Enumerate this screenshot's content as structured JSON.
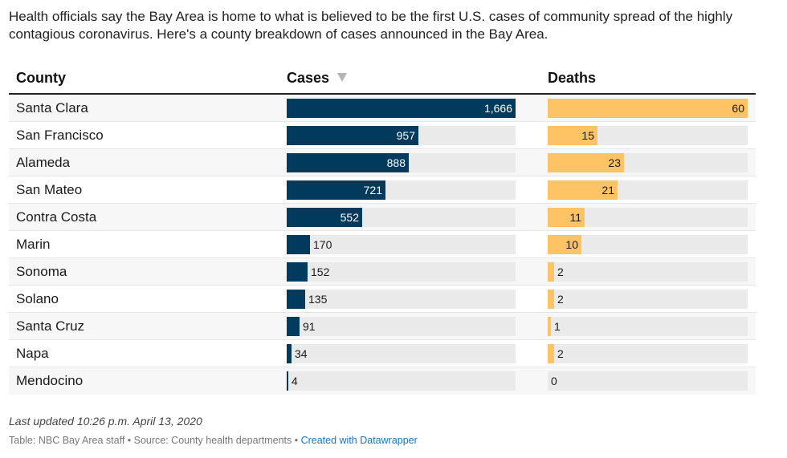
{
  "intro": "Health officials say the Bay Area is home to what is believed to be the first U.S. cases of community spread of the highly contagious coronavirus. Here's a county breakdown of cases announced in the Bay Area.",
  "headers": {
    "county": "County",
    "cases": "Cases",
    "deaths": "Deaths"
  },
  "sort_icon": "sort-descending-triangle-icon",
  "colors": {
    "cases": "#003a5c",
    "deaths": "#fdc364",
    "track": "#eaeaea"
  },
  "chart_data": {
    "type": "table",
    "title": "",
    "columns": [
      "County",
      "Cases",
      "Deaths"
    ],
    "sorted_by": "Cases",
    "sort_order": "descending",
    "cases_max": 1666,
    "deaths_max": 60,
    "rows": [
      {
        "county": "Santa Clara",
        "cases": "1,666",
        "cases_value": 1666,
        "deaths": "60",
        "deaths_value": 60
      },
      {
        "county": "San Francisco",
        "cases": "957",
        "cases_value": 957,
        "deaths": "15",
        "deaths_value": 15
      },
      {
        "county": "Alameda",
        "cases": "888",
        "cases_value": 888,
        "deaths": "23",
        "deaths_value": 23
      },
      {
        "county": "San Mateo",
        "cases": "721",
        "cases_value": 721,
        "deaths": "21",
        "deaths_value": 21
      },
      {
        "county": "Contra Costa",
        "cases": "552",
        "cases_value": 552,
        "deaths": "11",
        "deaths_value": 11
      },
      {
        "county": "Marin",
        "cases": "170",
        "cases_value": 170,
        "deaths": "10",
        "deaths_value": 10
      },
      {
        "county": "Sonoma",
        "cases": "152",
        "cases_value": 152,
        "deaths": "2",
        "deaths_value": 2
      },
      {
        "county": "Solano",
        "cases": "135",
        "cases_value": 135,
        "deaths": "2",
        "deaths_value": 2
      },
      {
        "county": "Santa Cruz",
        "cases": "91",
        "cases_value": 91,
        "deaths": "1",
        "deaths_value": 1
      },
      {
        "county": "Napa",
        "cases": "34",
        "cases_value": 34,
        "deaths": "2",
        "deaths_value": 2
      },
      {
        "county": "Mendocino",
        "cases": "4",
        "cases_value": 4,
        "deaths": "0",
        "deaths_value": 0
      }
    ]
  },
  "footer": {
    "updated": "Last updated 10:26 p.m. April 13, 2020",
    "credit": "Table: NBC Bay Area staff • Source: County health departments • ",
    "link": "Created with Datawrapper"
  }
}
